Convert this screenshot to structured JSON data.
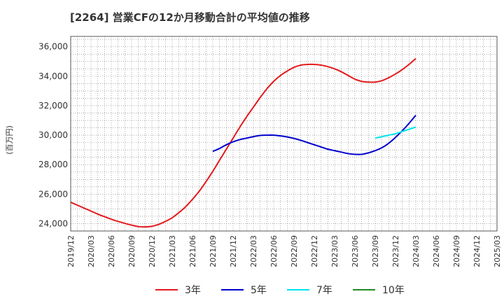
{
  "chart_data": {
    "type": "line",
    "title": "[2264]  営業CFの12か月移動合計の平均値の推移",
    "ylabel": "(百万円)",
    "xlabel": "",
    "ylim": [
      23500,
      36700
    ],
    "yticks": [
      24000,
      26000,
      28000,
      30000,
      32000,
      34000,
      36000
    ],
    "ytick_labels": [
      "24,000",
      "26,000",
      "28,000",
      "30,000",
      "32,000",
      "34,000",
      "36,000"
    ],
    "x_range": [
      "2019-12",
      "2025-03"
    ],
    "x_tick_labels": [
      "2019/12",
      "2020/03",
      "2020/06",
      "2020/09",
      "2020/12",
      "2021/03",
      "2021/06",
      "2021/09",
      "2021/12",
      "2022/03",
      "2022/06",
      "2022/09",
      "2022/12",
      "2023/03",
      "2023/06",
      "2023/09",
      "2023/12",
      "2024/03",
      "2024/06",
      "2024/09",
      "2024/12",
      "2025/03"
    ],
    "grid": true,
    "legend_position": "bottom",
    "series": [
      {
        "name": "3年",
        "color": "#e41a1c",
        "x": [
          "2019-12",
          "2020-01",
          "2020-02",
          "2020-03",
          "2020-04",
          "2020-05",
          "2020-06",
          "2020-07",
          "2020-08",
          "2020-09",
          "2020-10",
          "2020-11",
          "2020-12",
          "2021-01",
          "2021-02",
          "2021-03",
          "2021-04",
          "2021-05",
          "2021-06",
          "2021-07",
          "2021-08",
          "2021-09",
          "2021-10",
          "2021-11",
          "2021-12",
          "2022-01",
          "2022-02",
          "2022-03",
          "2022-04",
          "2022-05",
          "2022-06",
          "2022-07",
          "2022-08",
          "2022-09",
          "2022-10",
          "2022-11",
          "2022-12",
          "2023-01",
          "2023-02",
          "2023-03",
          "2023-04",
          "2023-05",
          "2023-06",
          "2023-07",
          "2023-08",
          "2023-09",
          "2023-10",
          "2023-11",
          "2023-12",
          "2024-01",
          "2024-02",
          "2024-03"
        ],
        "values": [
          25450,
          25250,
          25050,
          24850,
          24650,
          24470,
          24300,
          24150,
          24020,
          23900,
          23800,
          23780,
          23820,
          23950,
          24150,
          24400,
          24750,
          25150,
          25650,
          26200,
          26850,
          27550,
          28300,
          29050,
          29800,
          30550,
          31250,
          31900,
          32550,
          33150,
          33650,
          34050,
          34350,
          34600,
          34750,
          34800,
          34800,
          34750,
          34650,
          34500,
          34300,
          34050,
          33800,
          33650,
          33600,
          33600,
          33700,
          33900,
          34150,
          34450,
          34800,
          35200
        ]
      },
      {
        "name": "5年",
        "color": "#0000cd",
        "x": [
          "2021-09",
          "2021-10",
          "2021-11",
          "2021-12",
          "2022-01",
          "2022-02",
          "2022-03",
          "2022-04",
          "2022-05",
          "2022-06",
          "2022-07",
          "2022-08",
          "2022-09",
          "2022-10",
          "2022-11",
          "2022-12",
          "2023-01",
          "2023-02",
          "2023-03",
          "2023-04",
          "2023-05",
          "2023-06",
          "2023-07",
          "2023-08",
          "2023-09",
          "2023-10",
          "2023-11",
          "2023-12",
          "2024-01",
          "2024-02",
          "2024-03"
        ],
        "values": [
          28900,
          29100,
          29350,
          29550,
          29700,
          29800,
          29900,
          29980,
          30000,
          30000,
          29950,
          29880,
          29780,
          29650,
          29500,
          29350,
          29200,
          29050,
          28950,
          28850,
          28750,
          28700,
          28700,
          28800,
          28950,
          29150,
          29450,
          29850,
          30300,
          30800,
          31350
        ]
      },
      {
        "name": "7年",
        "color": "#00e5ee",
        "x": [
          "2023-09",
          "2023-10",
          "2023-11",
          "2023-12",
          "2024-01",
          "2024-02",
          "2024-03"
        ],
        "values": [
          29800,
          29900,
          30000,
          30100,
          30250,
          30400,
          30550
        ]
      },
      {
        "name": "10年",
        "color": "#228b22",
        "x": [],
        "values": []
      }
    ]
  }
}
